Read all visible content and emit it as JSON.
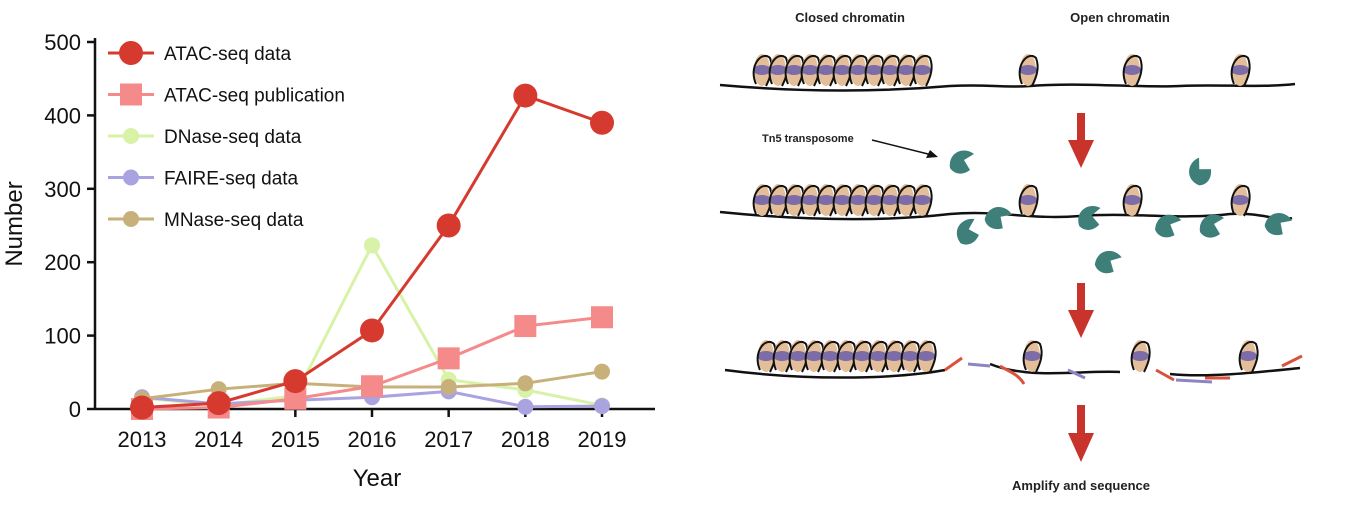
{
  "chart_data": {
    "type": "line",
    "x": [
      2013,
      2014,
      2015,
      2016,
      2017,
      2018,
      2019
    ],
    "xlabel": "Year",
    "ylabel": "Number",
    "ylim": [
      0,
      500
    ],
    "yticks": [
      0,
      100,
      200,
      300,
      400,
      500
    ],
    "legend_position": "top-left",
    "grid": false,
    "series": [
      {
        "name": "ATAC-seq data",
        "color": "#d63a2f",
        "marker": "circle",
        "values": [
          2,
          8,
          38,
          107,
          250,
          427,
          390
        ]
      },
      {
        "name": "ATAC-seq publication",
        "color": "#f58a8a",
        "marker": "square",
        "values": [
          0,
          2,
          14,
          31,
          69,
          113,
          125
        ]
      },
      {
        "name": "DNase-seq data",
        "color": "#d8f2a8",
        "marker": "circle",
        "values": [
          15,
          5,
          18,
          223,
          40,
          26,
          5
        ]
      },
      {
        "name": "FAIRE-seq data",
        "color": "#a9a3e0",
        "marker": "circle",
        "values": [
          16,
          7,
          12,
          16,
          24,
          3,
          4
        ]
      },
      {
        "name": "MNase-seq data",
        "color": "#c8b07a",
        "marker": "circle",
        "values": [
          14,
          27,
          35,
          30,
          30,
          35,
          51
        ]
      }
    ]
  },
  "diagram": {
    "closed_label": "Closed chromatin",
    "open_label": "Open chromatin",
    "tn5_label": "Tn5 transposome",
    "final_label": "Amplify and sequence"
  }
}
